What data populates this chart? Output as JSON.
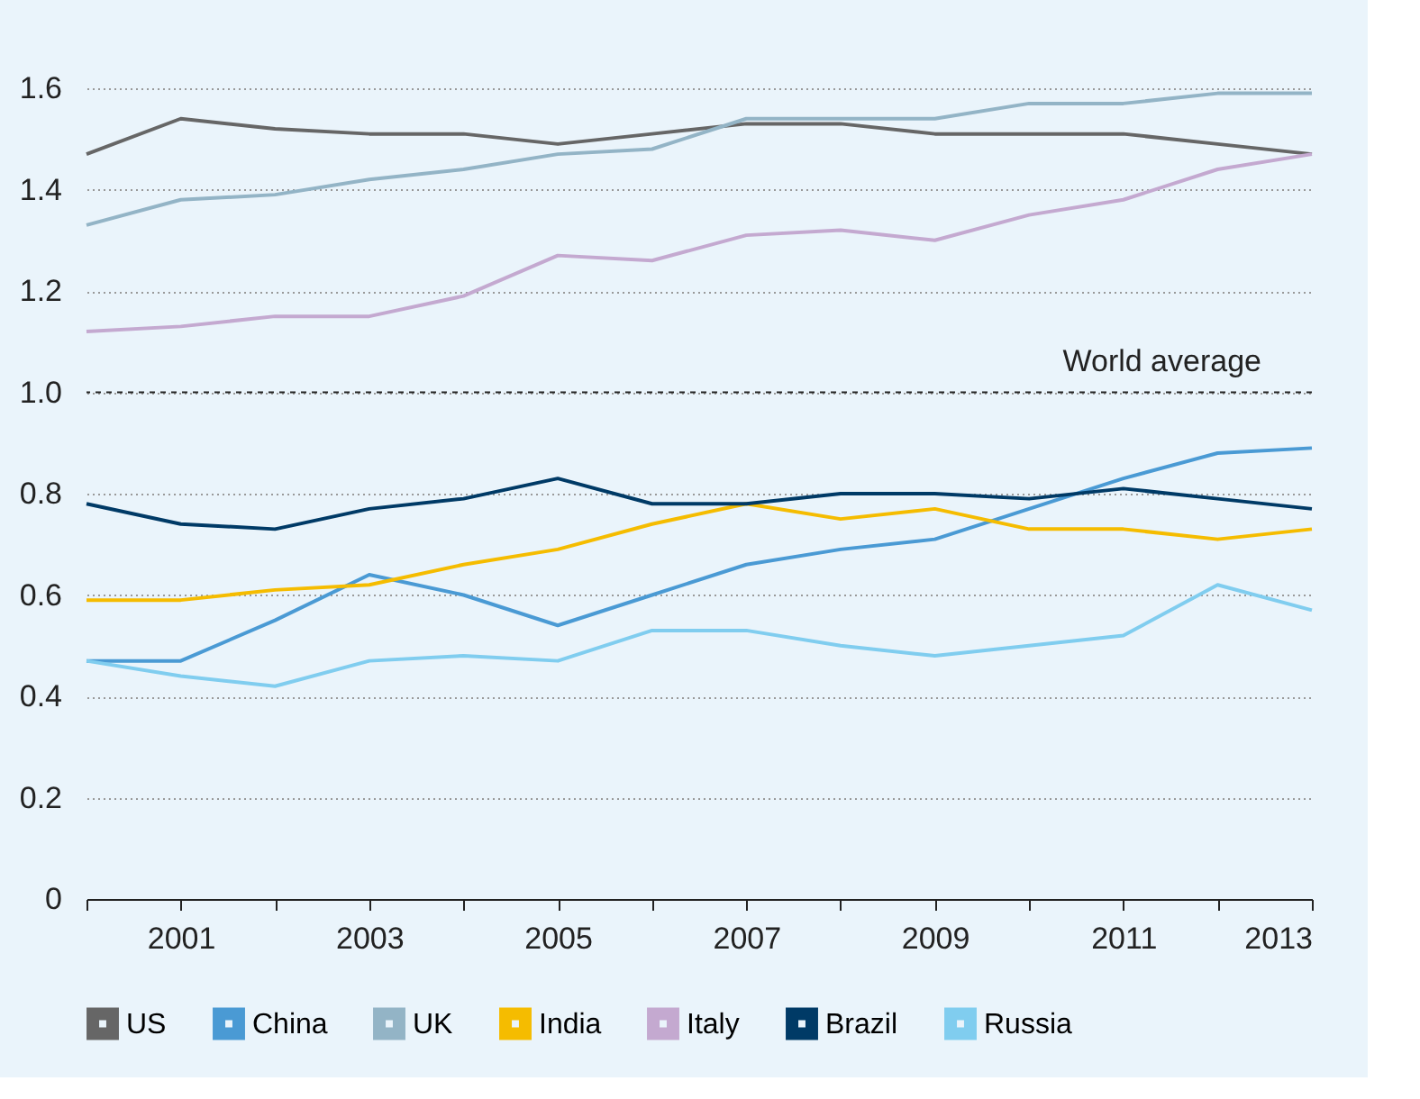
{
  "chart_data": {
    "type": "line",
    "x": [
      2000,
      2001,
      2002,
      2003,
      2004,
      2005,
      2006,
      2007,
      2008,
      2009,
      2010,
      2011,
      2012,
      2013
    ],
    "xlim": [
      2000,
      2013
    ],
    "xticks": [
      {
        "value": 2000,
        "label": null
      },
      2001,
      {
        "value": 2002,
        "label": null
      },
      2003,
      {
        "value": 2004,
        "label": null
      },
      2005,
      {
        "value": 2006,
        "label": null
      },
      2007,
      {
        "value": 2008,
        "label": null
      },
      2009,
      {
        "value": 2010,
        "label": null
      },
      2011,
      {
        "value": 2012,
        "label": null
      },
      2013
    ],
    "ylim": [
      0,
      1.6
    ],
    "yticks": [
      0,
      0.2,
      0.4,
      0.6,
      0.8,
      {
        "value": 1,
        "label": "1.0"
      },
      1.2,
      1.4,
      1.6
    ],
    "grid": "y",
    "legend": "bottom",
    "line_style": "solid",
    "ref_lines": [
      {
        "axis": "y",
        "value": 1,
        "label": "World average",
        "line_style": "dashed",
        "color": "#222222"
      }
    ],
    "series": [
      {
        "name": "US",
        "color": "#666666",
        "values": [
          1.47,
          1.54,
          1.52,
          1.51,
          1.51,
          1.49,
          1.51,
          1.53,
          1.53,
          1.51,
          1.51,
          1.51,
          1.49,
          1.47
        ]
      },
      {
        "name": "China",
        "color": "#4a9ad4",
        "values": [
          0.47,
          0.47,
          0.55,
          0.64,
          0.6,
          0.54,
          0.6,
          0.66,
          0.69,
          0.71,
          0.77,
          0.83,
          0.88,
          0.89
        ]
      },
      {
        "name": "UK",
        "color": "#93b4c6",
        "values": [
          1.33,
          1.38,
          1.39,
          1.42,
          1.44,
          1.47,
          1.48,
          1.54,
          1.54,
          1.54,
          1.57,
          1.57,
          1.59,
          1.59
        ]
      },
      {
        "name": "India",
        "color": "#f5bc00",
        "values": [
          0.59,
          0.59,
          0.61,
          0.62,
          0.66,
          0.69,
          0.74,
          0.78,
          0.75,
          0.77,
          0.73,
          0.73,
          0.71,
          0.73
        ]
      },
      {
        "name": "Italy",
        "color": "#c4a9d0",
        "values": [
          1.12,
          1.13,
          1.15,
          1.15,
          1.19,
          1.27,
          1.26,
          1.31,
          1.32,
          1.3,
          1.35,
          1.38,
          1.44,
          1.47
        ]
      },
      {
        "name": "Brazil",
        "color": "#003a66",
        "values": [
          0.78,
          0.74,
          0.73,
          0.77,
          0.79,
          0.83,
          0.78,
          0.78,
          0.8,
          0.8,
          0.79,
          0.81,
          0.79,
          0.77
        ]
      },
      {
        "name": "Russia",
        "color": "#80cdef",
        "values": [
          0.47,
          0.44,
          0.42,
          0.47,
          0.48,
          0.47,
          0.53,
          0.53,
          0.5,
          0.48,
          0.5,
          0.52,
          0.62,
          0.57
        ]
      }
    ]
  }
}
